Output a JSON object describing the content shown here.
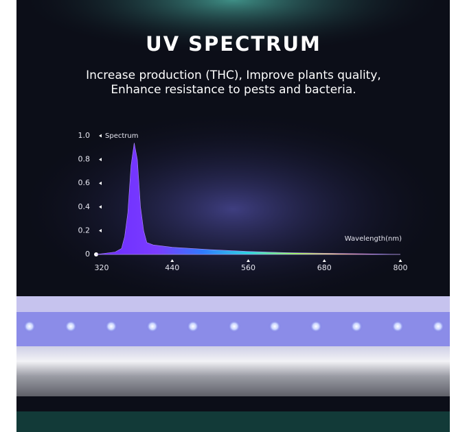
{
  "chart_data": {
    "type": "area",
    "title": "UV SPECTRUM",
    "subtitle": [
      "Increase production (THC), Improve plants quality,",
      "Enhance resistance to pests and bacteria."
    ],
    "y_label": "Spectrum",
    "x_label": "Wavelength(nm)",
    "x": [
      320,
      350,
      360,
      365,
      370,
      375,
      380,
      385,
      390,
      395,
      400,
      410,
      440,
      500,
      560,
      620,
      680,
      740,
      800
    ],
    "values": [
      0,
      0.02,
      0.05,
      0.15,
      0.35,
      0.75,
      0.94,
      0.8,
      0.4,
      0.2,
      0.1,
      0.08,
      0.06,
      0.04,
      0.025,
      0.015,
      0.01,
      0.005,
      0
    ],
    "xlim": [
      320,
      800
    ],
    "ylim": [
      0,
      1
    ],
    "xticks": [
      320,
      440,
      560,
      680,
      800
    ],
    "yticks": [
      0,
      0.2,
      0.4,
      0.6,
      0.8,
      {
        "value": 1,
        "label": "1.0"
      }
    ]
  }
}
